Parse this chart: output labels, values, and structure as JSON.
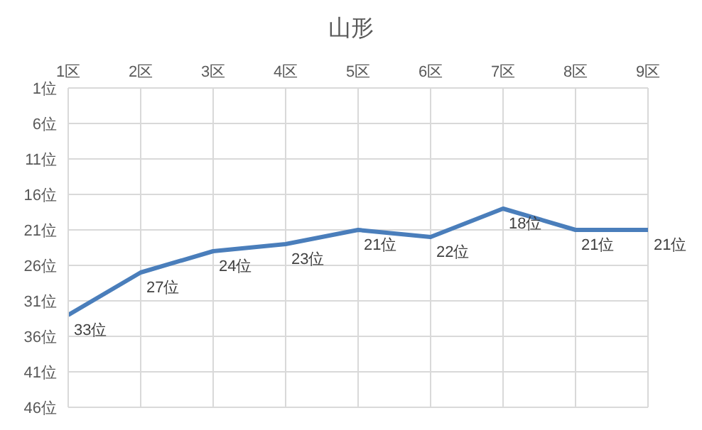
{
  "chart_data": {
    "type": "line",
    "title": "山形",
    "categories": [
      "1区",
      "2区",
      "3区",
      "4区",
      "5区",
      "6区",
      "7区",
      "8区",
      "9区"
    ],
    "series": [
      {
        "color": "#4a7ebb",
        "values": [
          33,
          27,
          24,
          23,
          21,
          22,
          18,
          21,
          21
        ],
        "value_labels": [
          "33位",
          "27位",
          "24位",
          "23位",
          "21位",
          "22位",
          "18位",
          "21位",
          "21位"
        ]
      }
    ],
    "ylim": [
      46,
      1
    ],
    "yticks": [
      {
        "value": 1,
        "label": "1位"
      },
      {
        "value": 6,
        "label": "6位"
      },
      {
        "value": 11,
        "label": "11位"
      },
      {
        "value": 16,
        "label": "16位"
      },
      {
        "value": 21,
        "label": "21位"
      },
      {
        "value": 26,
        "label": "26位"
      },
      {
        "value": 31,
        "label": "31位"
      },
      {
        "value": 36,
        "label": "36位"
      },
      {
        "value": 41,
        "label": "41位"
      },
      {
        "value": 46,
        "label": "46位"
      }
    ],
    "grid": true,
    "marker": "none"
  }
}
